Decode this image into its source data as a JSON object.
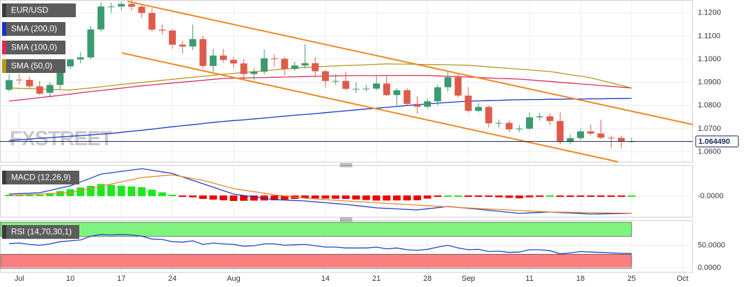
{
  "chart_data": [
    {
      "type": "candlestick",
      "watermark": "FXSTREET",
      "categories": [
        null,
        "Jul",
        null,
        null,
        null,
        null,
        "10",
        null,
        null,
        null,
        null,
        "17",
        null,
        null,
        null,
        null,
        "24",
        null,
        null,
        null,
        null,
        null,
        "Aug",
        null,
        null,
        null,
        null,
        null,
        null,
        null,
        null,
        "14",
        null,
        null,
        null,
        null,
        "21",
        null,
        null,
        null,
        null,
        "28",
        null,
        null,
        null,
        "Sep",
        null,
        null,
        null,
        null,
        null,
        "11",
        null,
        null,
        null,
        null,
        "18",
        null,
        null,
        null,
        null,
        "25",
        null,
        null,
        null,
        null,
        "Oct"
      ],
      "series": [
        {
          "name": "EUR/USD",
          "up_color": "#3b9a6f",
          "down_color": "#de5b4b",
          "open": [
            1.0868,
            1.0912,
            1.0911,
            1.0883,
            1.0855,
            1.0889,
            1.0969,
            1.0999,
            1.1008,
            1.1129,
            1.1228,
            1.1228,
            1.1239,
            1.1227,
            1.12,
            1.1128,
            1.1124,
            1.1063,
            1.1055,
            1.1087,
            1.0971,
            1.1016,
            1.0997,
            1.0982,
            1.0936,
            1.0946,
            1.1004,
            1.1002,
            1.0958,
            1.0973,
            1.0983,
            1.0948,
            1.0906,
            1.0906,
            1.0872,
            1.0872,
            1.0873,
            1.0895,
            1.0845,
            1.0866,
            1.0807,
            1.0795,
            1.0818,
            1.0879,
            1.0922,
            1.0843,
            1.0777,
            1.0794,
            1.0723,
            1.0725,
            1.0697,
            1.07,
            1.0749,
            1.0753,
            1.0733,
            1.0642,
            1.0659,
            1.0688,
            1.0679,
            1.0661,
            1.066,
            1.0645,
            null,
            null,
            null,
            null,
            null
          ],
          "high": [
            1.0935,
            1.0935,
            1.0925,
            1.0905,
            1.09,
            1.0975,
            1.1003,
            1.103,
            1.1144,
            1.1245,
            1.1245,
            1.125,
            1.1255,
            1.124,
            1.122,
            1.115,
            1.113,
            1.108,
            1.115,
            1.11,
            1.1045,
            1.1045,
            1.101,
            1.1,
            1.096,
            1.1043,
            1.102,
            1.101,
            1.099,
            1.1065,
            1.101,
            1.0955,
            1.0935,
            1.0945,
            1.09,
            1.089,
            1.0925,
            1.093,
            1.0875,
            1.0875,
            1.084,
            1.083,
            1.089,
            1.0945,
            1.094,
            1.088,
            1.081,
            1.08,
            1.074,
            1.0735,
            1.0715,
            1.077,
            1.0768,
            1.0765,
            1.077,
            1.0675,
            1.07,
            1.0718,
            1.0738,
            1.067,
            1.067,
            1.066,
            null,
            null,
            null,
            null,
            null
          ],
          "low": [
            1.086,
            1.0892,
            1.0875,
            1.0845,
            1.0834,
            1.087,
            1.0958,
            1.0982,
            1.1,
            1.112,
            1.12,
            1.121,
            1.121,
            1.118,
            1.112,
            1.1107,
            1.1045,
            1.1025,
            1.104,
            1.096,
            1.0945,
            1.0985,
            1.096,
            1.091,
            1.0912,
            1.0935,
            1.097,
            1.093,
            1.095,
            1.096,
            1.092,
            1.0878,
            1.089,
            1.0865,
            1.0855,
            1.086,
            1.0865,
            1.084,
            1.08,
            1.08,
            1.0765,
            1.0785,
            1.08,
            1.086,
            1.0835,
            1.077,
            1.077,
            1.0705,
            1.0705,
            1.0685,
            1.0685,
            1.0695,
            1.0735,
            1.0715,
            1.0632,
            1.0632,
            1.065,
            1.0672,
            1.0655,
            1.0615,
            1.0615,
            1.064,
            null,
            null,
            null,
            null,
            null
          ],
          "close": [
            1.091,
            1.0911,
            1.0883,
            1.0851,
            1.0889,
            1.0969,
            1.0999,
            1.1008,
            1.1129,
            1.1228,
            1.1228,
            1.1239,
            1.1227,
            1.12,
            1.1128,
            1.1124,
            1.1063,
            1.1055,
            1.1087,
            1.0971,
            1.1016,
            1.0997,
            1.0982,
            1.0936,
            1.0946,
            1.1004,
            1.1002,
            1.0958,
            1.0973,
            1.0983,
            1.0948,
            1.0906,
            1.0906,
            1.0872,
            1.0872,
            1.0873,
            1.0895,
            1.0845,
            1.0866,
            1.0807,
            1.0795,
            1.0818,
            1.0879,
            1.0922,
            1.0843,
            1.0777,
            1.0794,
            1.0723,
            1.0725,
            1.0697,
            1.07,
            1.0749,
            1.0753,
            1.0733,
            1.0642,
            1.0659,
            1.0688,
            1.0679,
            1.0661,
            1.066,
            1.0645,
            1.0645,
            null,
            null,
            null,
            null,
            null
          ]
        }
      ],
      "overlays": [
        {
          "name": "SMA (200,0)",
          "color": "#1533c8",
          "values": [
            1.0649,
            1.0652,
            1.0655,
            1.0658,
            1.0661,
            1.0664,
            1.0667,
            1.067,
            1.0673,
            1.0676,
            1.0679,
            1.0684,
            1.0689,
            1.0693,
            1.0698,
            1.0703,
            1.0708,
            1.0713,
            1.0717,
            1.0722,
            1.0727,
            1.0731,
            1.0735,
            1.0738,
            1.0742,
            1.0746,
            1.075,
            1.0754,
            1.0758,
            1.0761,
            1.0765,
            1.0769,
            1.0773,
            1.0777,
            1.0781,
            1.0785,
            1.0788,
            1.0792,
            1.0796,
            1.08,
            1.0804,
            1.0807,
            1.081,
            1.0813,
            1.0816,
            1.0819,
            1.082,
            1.0821,
            1.0822,
            1.0824,
            1.0825,
            1.0826,
            1.0826,
            1.0827,
            1.0827,
            1.0828,
            1.0828,
            1.0829,
            1.0829,
            1.083,
            1.083,
            1.0831,
            null,
            null,
            null,
            null,
            null
          ]
        },
        {
          "name": "SMA (100,0)",
          "color": "#dc2a5c",
          "values": [
            1.0819,
            1.0824,
            1.0829,
            1.0834,
            1.0839,
            1.0844,
            1.0849,
            1.0855,
            1.086,
            1.0865,
            1.087,
            1.0875,
            1.088,
            1.0885,
            1.0889,
            1.0893,
            1.0897,
            1.0901,
            1.0905,
            1.0909,
            1.0913,
            1.0917,
            1.0918,
            1.0919,
            1.092,
            1.0921,
            1.0922,
            1.0923,
            1.0924,
            1.0925,
            1.0926,
            1.0927,
            1.0928,
            1.0929,
            1.0929,
            1.0929,
            1.0929,
            1.093,
            1.093,
            1.093,
            1.093,
            1.093,
            1.0928,
            1.0926,
            1.0925,
            1.0923,
            1.0921,
            1.0919,
            1.0917,
            1.0916,
            1.0914,
            1.0911,
            1.0907,
            1.0904,
            1.09,
            1.0897,
            1.0893,
            1.089,
            1.0886,
            1.0883,
            1.0879,
            1.0876,
            null,
            null,
            null,
            null,
            null
          ]
        },
        {
          "name": "SMA (50,0)",
          "color": "#b09a1c",
          "values": [
            1.0876,
            1.0874,
            1.0873,
            1.0871,
            1.087,
            1.0868,
            1.0867,
            1.0872,
            1.0876,
            1.0881,
            1.0886,
            1.0891,
            1.0895,
            1.09,
            1.0904,
            1.0909,
            1.0913,
            1.0918,
            1.0922,
            1.0926,
            1.0931,
            1.0935,
            1.0939,
            1.0943,
            1.0946,
            1.095,
            1.0954,
            1.0958,
            1.0961,
            1.0965,
            1.0967,
            1.0969,
            1.0971,
            1.0973,
            1.0974,
            1.0976,
            1.0978,
            1.098,
            1.0979,
            1.0979,
            1.0978,
            1.0977,
            1.0977,
            1.0976,
            1.0975,
            1.0974,
            1.0971,
            1.0967,
            1.0964,
            1.096,
            1.0957,
            1.0954,
            1.095,
            1.0947,
            1.094,
            1.0933,
            1.0927,
            1.092,
            1.0909,
            1.0898,
            1.0887,
            1.0876,
            null,
            null,
            null,
            null,
            null
          ]
        }
      ],
      "last_price": {
        "value": 1.06449,
        "label": "1.064490"
      },
      "ylim": [
        1.0557,
        1.1256
      ],
      "yticks": [
        {
          "value": 1.12,
          "label": "1.1200"
        },
        {
          "value": 1.11,
          "label": "1.1100"
        },
        {
          "value": 1.1,
          "label": "1.1000"
        },
        {
          "value": 1.09,
          "label": "1.0900"
        },
        {
          "value": 1.08,
          "label": "1.0800"
        },
        {
          "value": 1.07,
          "label": "1.0700"
        },
        {
          "value": 1.06,
          "label": "1.0600"
        }
      ],
      "grid": true
    },
    {
      "type": "macd",
      "label": "MACD (12,26,9)",
      "lines": [
        {
          "color": "#2040c8",
          "values": [
            0.00064,
            0.00079,
            0.00092,
            0.00107,
            0.00177,
            0.00249,
            0.0032,
            0.00441,
            0.0056,
            0.00682,
            0.00724,
            0.00767,
            0.00809,
            0.00852,
            0.00803,
            0.00752,
            0.00703,
            0.00596,
            0.0049,
            0.00383,
            0.00277,
            0.0017,
            0.00064,
            0.00021,
            -0.00021,
            -0.00064,
            -0.00107,
            -0.00121,
            -0.00134,
            -0.00149,
            -0.00177,
            -0.00202,
            -0.0023,
            -0.00256,
            -0.00292,
            -0.00326,
            -0.00362,
            -0.00379,
            -0.00394,
            -0.00411,
            -0.00426,
            -0.0039,
            -0.00356,
            -0.0032,
            -0.00347,
            -0.00377,
            -0.00405,
            -0.00437,
            -0.00469,
            -0.00501,
            -0.00533,
            -0.00518,
            -0.00505,
            -0.0049,
            -0.00507,
            -0.00522,
            -0.00539,
            -0.00554,
            -0.0055,
            -0.00543,
            -0.00539,
            -0.00533,
            null,
            null,
            null,
            null,
            null
          ]
        },
        {
          "color": "#e8862a",
          "values": [
            0.00021,
            0.00036,
            0.00049,
            0.00064,
            0.00079,
            0.00092,
            0.00107,
            0.00173,
            0.00241,
            0.00307,
            0.00375,
            0.00441,
            0.00509,
            0.00575,
            0.00603,
            0.00633,
            0.0066,
            0.00603,
            0.00547,
            0.0049,
            0.00405,
            0.0032,
            0.00234,
            0.00186,
            0.00138,
            0.00091,
            0.00043,
            6e-05,
            -0.00028,
            -0.00064,
            -0.00085,
            -0.00107,
            -0.00128,
            -0.00149,
            -0.00168,
            -0.00185,
            -0.00204,
            -0.00222,
            -0.00241,
            -0.00258,
            -0.00277,
            -0.00294,
            -0.00313,
            -0.0033,
            -0.00347,
            -0.00366,
            -0.00383,
            -0.00398,
            -0.00413,
            -0.00428,
            -0.00445,
            -0.0046,
            -0.00475,
            -0.0049,
            -0.00495,
            -0.00501,
            -0.00506,
            -0.00511,
            -0.00517,
            -0.00522,
            -0.00527,
            -0.00533,
            null,
            null,
            null,
            null,
            null
          ]
        }
      ],
      "histogram": {
        "up_color": "#1de81d",
        "down_color": "#ee0000",
        "values": [
          0.00043,
          0.00043,
          0.00043,
          0.00043,
          0.00098,
          0.00157,
          0.00213,
          0.00268,
          0.00319,
          0.00375,
          0.00349,
          0.00326,
          0.003,
          0.00277,
          0.002,
          0.00119,
          0.00043,
          -7e-05,
          -0.00057,
          -0.00107,
          -0.00128,
          -0.0015,
          -0.0017,
          -0.00165,
          -0.00159,
          -0.00155,
          -0.0015,
          -0.00127,
          -0.00106,
          -0.00085,
          -0.00092,
          -0.00095,
          -0.00102,
          -0.00107,
          -0.00124,
          -0.00141,
          -0.00158,
          -0.00157,
          -0.00153,
          -0.00153,
          -0.00149,
          -0.00096,
          -0.00043,
          0.0001,
          0,
          -0.00011,
          -0.00022,
          -0.00039,
          -0.00056,
          -0.00073,
          -0.00088,
          -0.00058,
          -0.0003,
          0,
          -0.00012,
          -0.00021,
          -0.00033,
          -0.00043,
          -0.00033,
          -0.00021,
          -0.00012,
          0,
          null,
          null,
          null,
          null,
          null
        ]
      },
      "ylim": [
        -0.0064,
        0.0096
      ],
      "yticks": [
        {
          "value": 0,
          "label": "-0.0000"
        }
      ]
    },
    {
      "type": "rsi",
      "label": "RSI (14,70,30,1)",
      "color": "#2040c8",
      "values": [
        54,
        55,
        52,
        50,
        53,
        58,
        60,
        62,
        70,
        74,
        73,
        74,
        73,
        70,
        64,
        63,
        58,
        57,
        60,
        52,
        55,
        53,
        52,
        48,
        49,
        53,
        53,
        50,
        51,
        52,
        49,
        46,
        46,
        44,
        44,
        44,
        46,
        42,
        44,
        40,
        39,
        41,
        46,
        50,
        44,
        40,
        41,
        36,
        37,
        34,
        35,
        40,
        40,
        38,
        31,
        33,
        36,
        35,
        34,
        33,
        32,
        32,
        null,
        null,
        null,
        null,
        null
      ],
      "overbought": 70,
      "oversold": 30,
      "overbought_color": "#7ef47e",
      "oversold_color": "#fb7f7f",
      "ylim": [
        -9.2,
        105.8
      ],
      "yticks": [
        {
          "value": 50,
          "label": "50.0000"
        },
        {
          "value": 0,
          "label": "0.0000"
        }
      ]
    }
  ]
}
